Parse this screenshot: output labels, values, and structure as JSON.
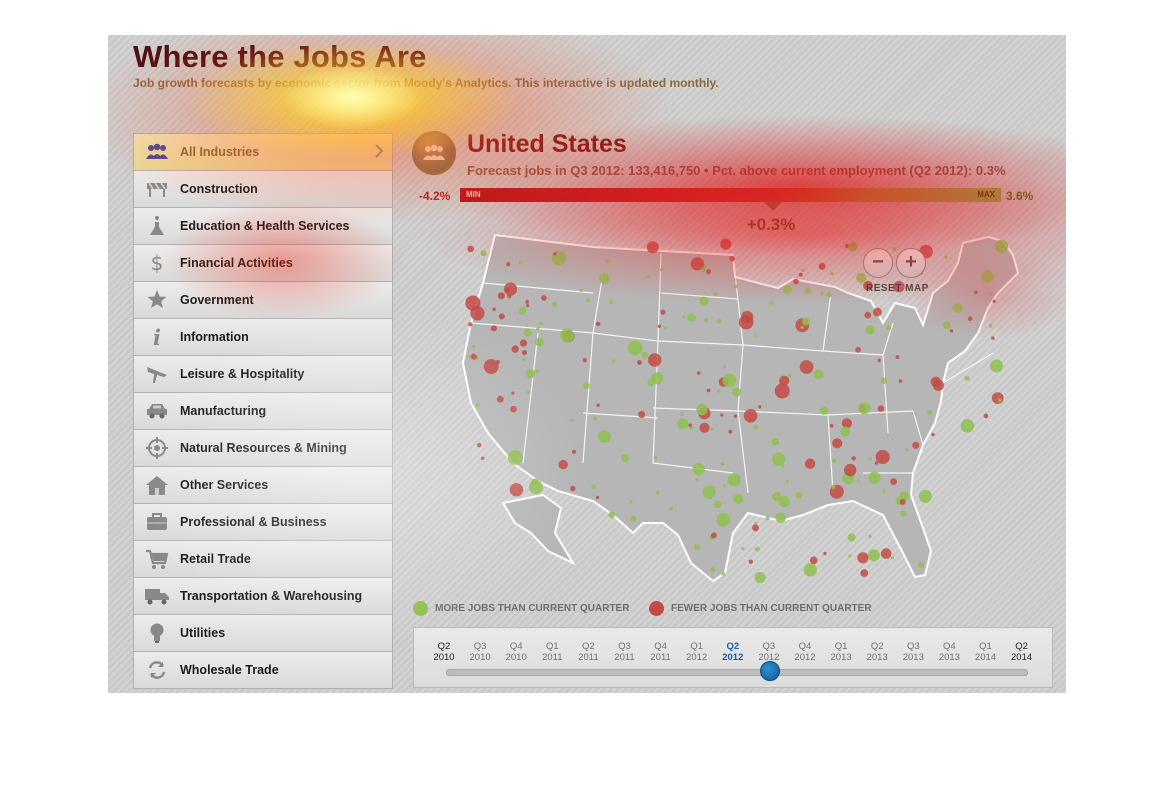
{
  "header": {
    "title": "Where the Jobs Are",
    "subtitle": "Job growth forecasts by economic sector from Moody's Analytics. This interactive is updated monthly."
  },
  "sidebar": {
    "items": [
      {
        "label": "All Industries",
        "icon": "people-icon",
        "active": true
      },
      {
        "label": "Construction",
        "icon": "barrier-icon"
      },
      {
        "label": "Education & Health Services",
        "icon": "flask-icon"
      },
      {
        "label": "Financial Activities",
        "icon": "dollar-icon"
      },
      {
        "label": "Government",
        "icon": "star-badge-icon"
      },
      {
        "label": "Information",
        "icon": "info-icon"
      },
      {
        "label": "Leisure & Hospitality",
        "icon": "airplane-icon"
      },
      {
        "label": "Manufacturing",
        "icon": "car-icon"
      },
      {
        "label": "Natural Resources & Mining",
        "icon": "target-icon"
      },
      {
        "label": "Other Services",
        "icon": "house-icon"
      },
      {
        "label": "Professional & Business",
        "icon": "briefcase-icon"
      },
      {
        "label": "Retail Trade",
        "icon": "cart-icon"
      },
      {
        "label": "Transportation & Warehousing",
        "icon": "truck-icon"
      },
      {
        "label": "Utilities",
        "icon": "lightbulb-icon"
      },
      {
        "label": "Wholesale Trade",
        "icon": "recycle-icon"
      }
    ]
  },
  "region": {
    "name": "United States",
    "forecast": "Forecast jobs in Q3 2012: 133,416,750 • Pct. above current employment (Q2 2012): 0.3%",
    "icon": "people-icon"
  },
  "scale": {
    "min_value": "-4.2%",
    "max_value": "3.6%",
    "min_label": "MIN",
    "max_label": "MAX",
    "current": "+0.3%",
    "current_fraction": 0.578,
    "colors": {
      "negative": "#b4141a",
      "positive": "#8ab84f"
    }
  },
  "map_controls": {
    "zoom_out": "−",
    "zoom_in": "+",
    "reset": "RESET MAP"
  },
  "legend": {
    "more": "MORE JOBS THAN CURRENT QUARTER",
    "fewer": "FEWER JOBS THAN CURRENT QUARTER",
    "more_color": "#8fbf4f",
    "fewer_color": "#c44a45"
  },
  "timeline": {
    "ticks": [
      {
        "q": "Q2",
        "y": "2010"
      },
      {
        "q": "Q3",
        "y": "2010"
      },
      {
        "q": "Q4",
        "y": "2010"
      },
      {
        "q": "Q1",
        "y": "2011"
      },
      {
        "q": "Q2",
        "y": "2011"
      },
      {
        "q": "Q3",
        "y": "2011"
      },
      {
        "q": "Q4",
        "y": "2011"
      },
      {
        "q": "Q1",
        "y": "2012"
      },
      {
        "q": "Q2",
        "y": "2012"
      },
      {
        "q": "Q3",
        "y": "2012"
      },
      {
        "q": "Q4",
        "y": "2012"
      },
      {
        "q": "Q1",
        "y": "2013"
      },
      {
        "q": "Q2",
        "y": "2013"
      },
      {
        "q": "Q3",
        "y": "2013"
      },
      {
        "q": "Q4",
        "y": "2013"
      },
      {
        "q": "Q1",
        "y": "2014"
      },
      {
        "q": "Q2",
        "y": "2014"
      }
    ],
    "selected_index": 8,
    "handle_index": 9
  }
}
